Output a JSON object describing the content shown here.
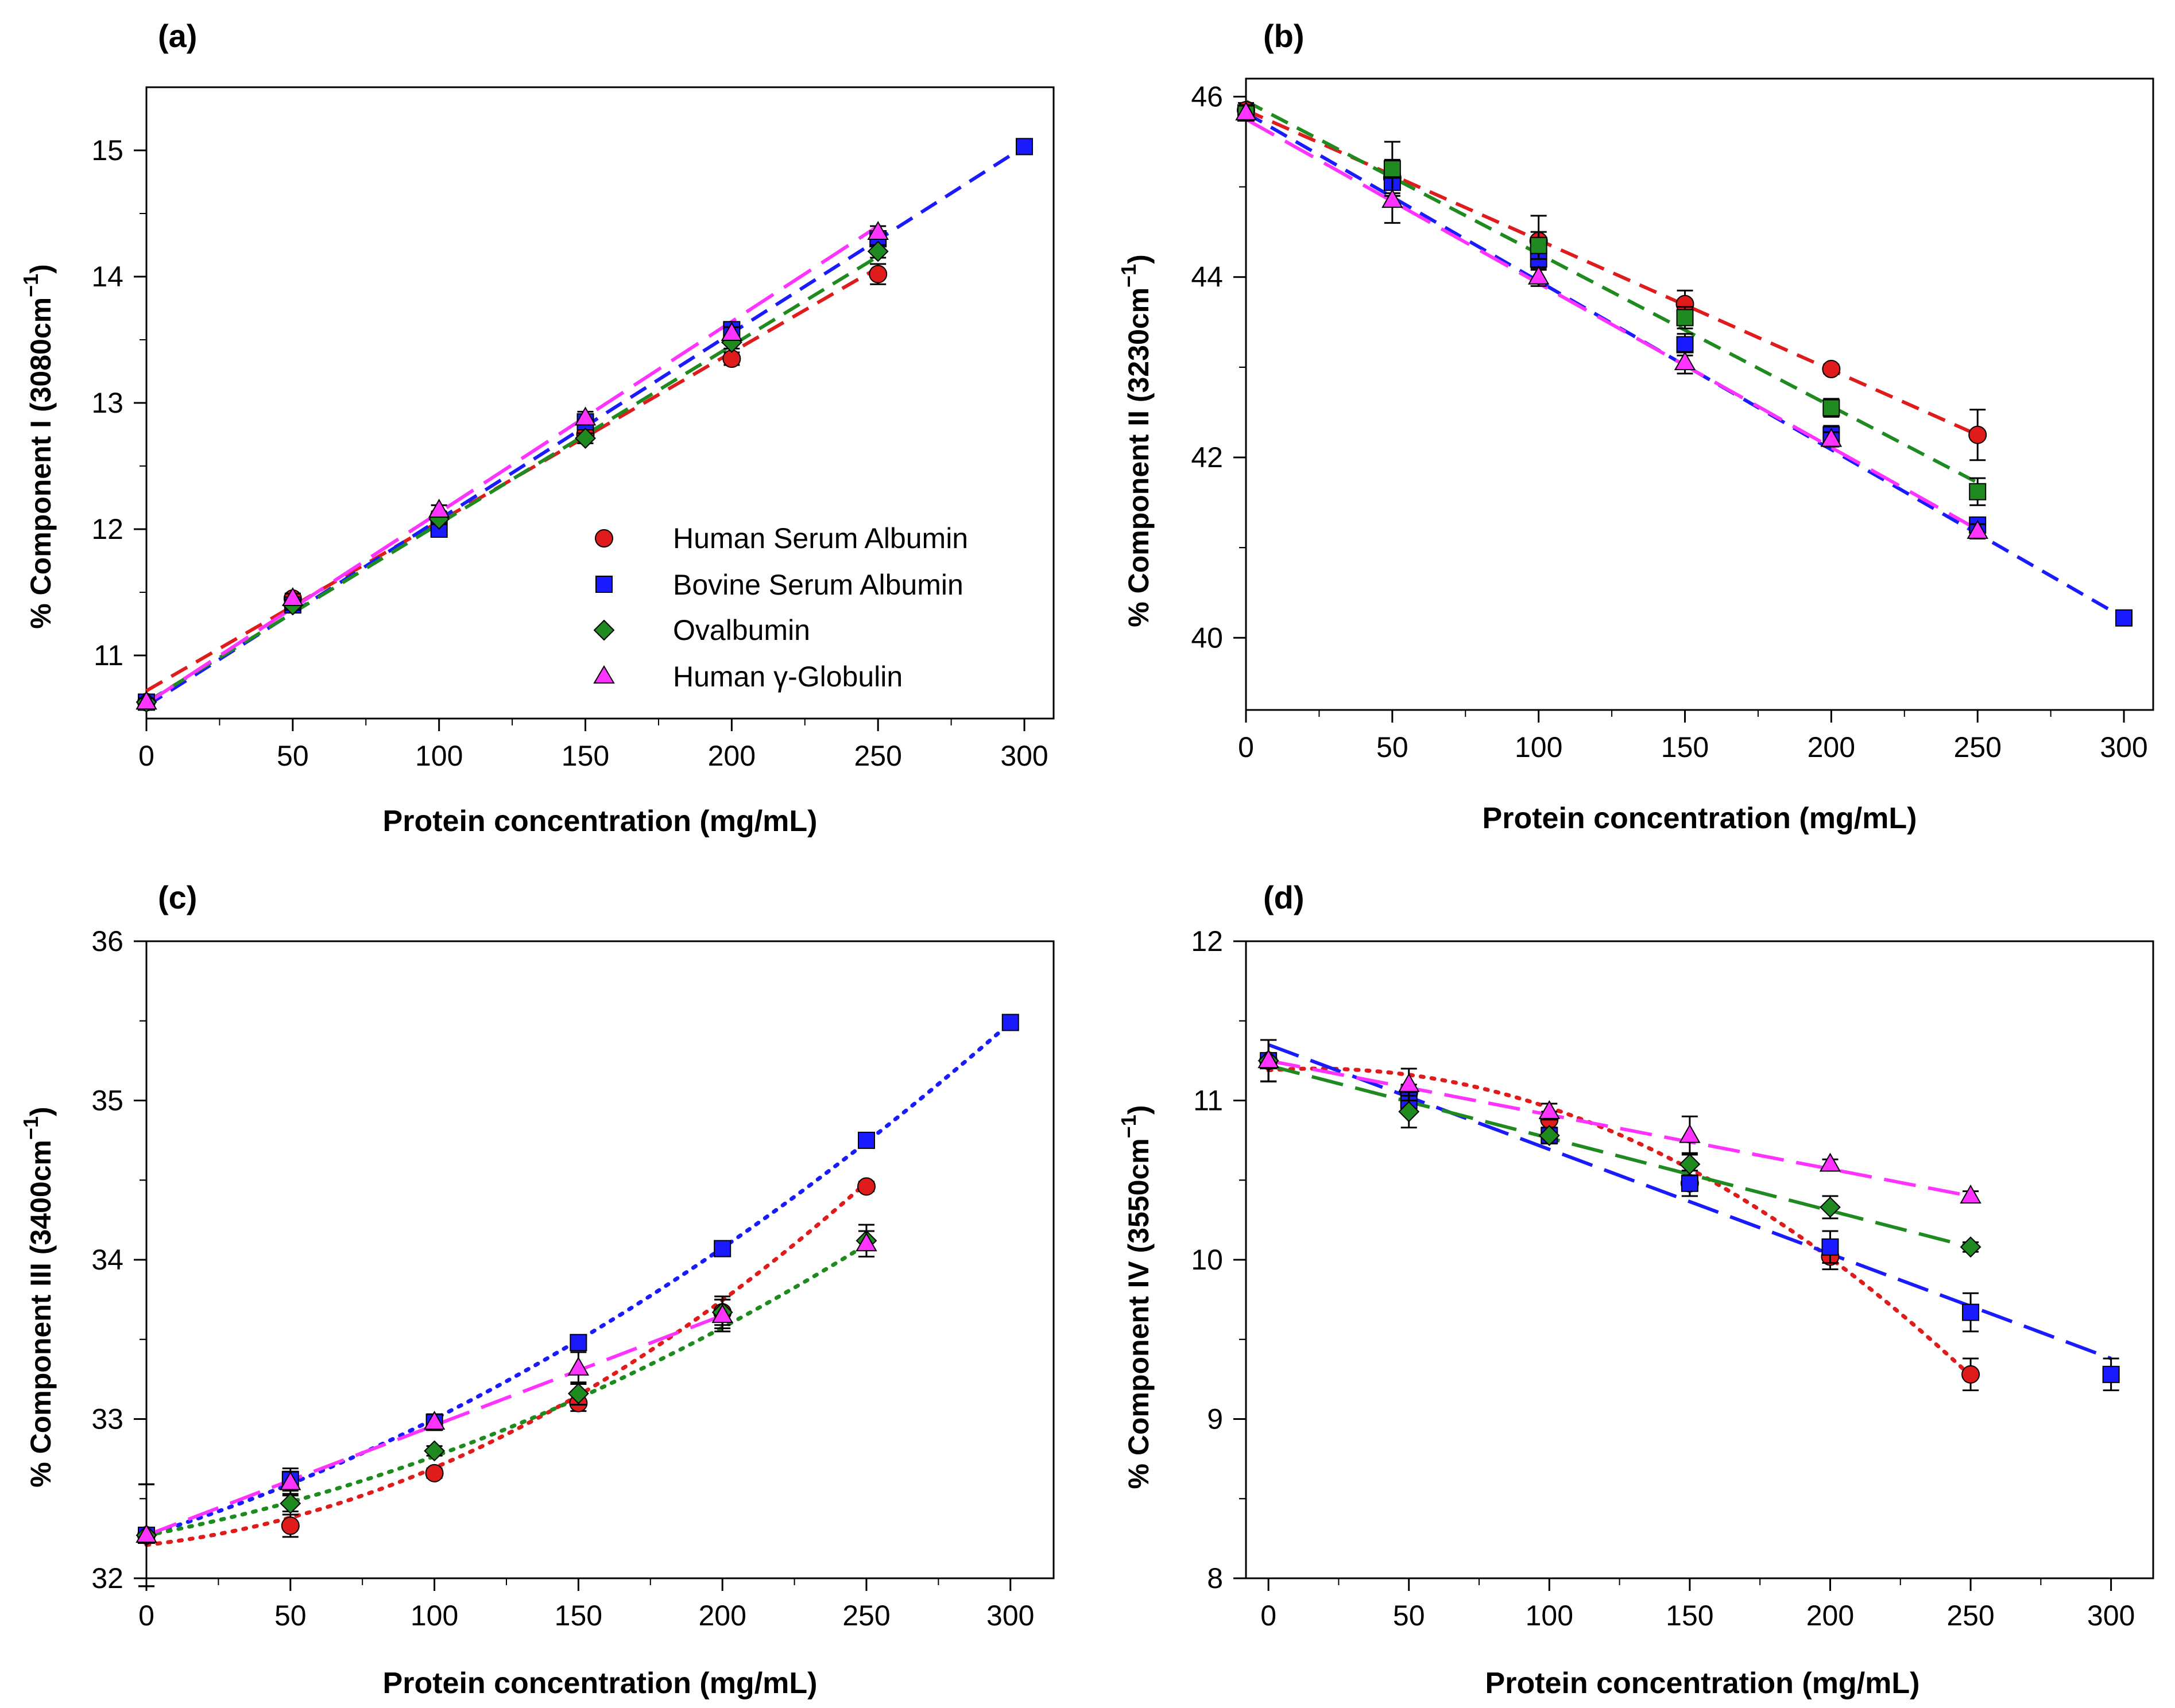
{
  "legend": {
    "hsa": "Human Serum Albumin",
    "bsa": "Bovine Serum Albumin",
    "ova": "Ovalbumin",
    "hgg": "Human γ-Globulin"
  },
  "colors": {
    "hsa": "#e01b1b",
    "bsa": "#1a1aff",
    "ova": "#1f8a1f",
    "hgg": "#ff33ff"
  },
  "chart_data": [
    {
      "type": "scatter",
      "panel": "(a)",
      "xlabel": "Protein concentration (mg/mL)",
      "ylabel_prefix": "% Component I (3080cm",
      "ylabel_sup": "−1",
      "ylabel_suffix": ")",
      "xlim": [
        0,
        310
      ],
      "ylim": [
        10.5,
        15.5
      ],
      "xticks": [
        0,
        50,
        100,
        150,
        200,
        250,
        300
      ],
      "yticks": [
        11,
        12,
        13,
        14,
        15
      ],
      "legend_position": "bottom-right",
      "series": [
        {
          "key": "hsa",
          "marker": "circle",
          "x": [
            0,
            50,
            100,
            150,
            200,
            250
          ],
          "y": [
            10.63,
            11.45,
            12.1,
            12.75,
            13.35,
            14.02
          ],
          "err": [
            0.03,
            0.04,
            0.04,
            0.04,
            0.05,
            0.08
          ],
          "fit": {
            "style": "dash",
            "type": "linear",
            "x": [
              0,
              250
            ],
            "y": [
              10.72,
              14.07
            ]
          }
        },
        {
          "key": "bsa",
          "marker": "square",
          "x": [
            0,
            50,
            100,
            150,
            200,
            250,
            300
          ],
          "y": [
            10.63,
            11.4,
            12.0,
            12.85,
            13.58,
            14.3,
            15.03
          ],
          "err": [
            0.03,
            0.04,
            0.04,
            0.05,
            0.05,
            0.05,
            0.03
          ],
          "fit": {
            "style": "dash",
            "type": "linear",
            "x": [
              0,
              300
            ],
            "y": [
              10.6,
              15.03
            ]
          }
        },
        {
          "key": "ova",
          "marker": "diamond",
          "x": [
            0,
            50,
            100,
            150,
            200,
            250
          ],
          "y": [
            10.63,
            11.4,
            12.08,
            12.72,
            13.48,
            14.2
          ],
          "err": [
            0.03,
            0.04,
            0.04,
            0.04,
            0.05,
            0.05
          ],
          "fit": {
            "style": "dash",
            "type": "linear",
            "x": [
              0,
              250
            ],
            "y": [
              10.63,
              14.16
            ]
          }
        },
        {
          "key": "hgg",
          "marker": "triangle",
          "x": [
            0,
            50,
            100,
            150,
            200,
            250
          ],
          "y": [
            10.63,
            11.45,
            12.15,
            12.88,
            13.55,
            14.35
          ],
          "err": [
            0.03,
            0.04,
            0.04,
            0.05,
            0.05,
            0.05
          ],
          "fit": {
            "style": "longdash",
            "type": "linear",
            "x": [
              0,
              250
            ],
            "y": [
              10.62,
              14.4
            ]
          }
        }
      ]
    },
    {
      "type": "scatter",
      "panel": "(b)",
      "xlabel": "Protein concentration (mg/mL)",
      "ylabel_prefix": "% Component II (3230cm",
      "ylabel_sup": "−1",
      "ylabel_suffix": ")",
      "xlim": [
        0,
        310
      ],
      "ylim": [
        39.2,
        46.2
      ],
      "xticks": [
        0,
        50,
        100,
        150,
        200,
        250,
        300
      ],
      "yticks": [
        40,
        42,
        44,
        46
      ],
      "series": [
        {
          "key": "hsa",
          "marker": "circle",
          "x": [
            0,
            50,
            100,
            150,
            200,
            250
          ],
          "y": [
            45.85,
            45.1,
            44.4,
            43.7,
            42.98,
            42.25
          ],
          "err": [
            0.08,
            0.2,
            0.28,
            0.15,
            0.05,
            0.28
          ],
          "fit": {
            "style": "dash",
            "type": "linear",
            "x": [
              0,
              250
            ],
            "y": [
              45.85,
              42.25
            ]
          }
        },
        {
          "key": "bsa",
          "marker": "square",
          "x": [
            0,
            50,
            100,
            150,
            200,
            250,
            300
          ],
          "y": [
            45.82,
            45.05,
            44.2,
            43.25,
            42.25,
            41.25,
            40.22
          ],
          "err": [
            0.08,
            0.12,
            0.12,
            0.12,
            0.1,
            0.08,
            0.05
          ],
          "fit": {
            "style": "dash",
            "type": "linear",
            "x": [
              0,
              300
            ],
            "y": [
              45.82,
              40.22
            ]
          }
        },
        {
          "key": "ova",
          "marker": "square",
          "x": [
            0,
            50,
            100,
            150,
            200,
            250
          ],
          "y": [
            45.82,
            45.2,
            44.35,
            43.55,
            42.55,
            41.62
          ],
          "err": [
            0.08,
            0.3,
            0.15,
            0.12,
            0.1,
            0.15
          ],
          "fit": {
            "style": "dash",
            "type": "linear",
            "x": [
              0,
              250
            ],
            "y": [
              45.95,
              41.72
            ]
          }
        },
        {
          "key": "hgg",
          "marker": "triangle",
          "x": [
            0,
            50,
            100,
            150,
            200,
            250
          ],
          "y": [
            45.82,
            44.85,
            44.0,
            43.05,
            42.2,
            41.18
          ],
          "err": [
            0.08,
            0.25,
            0.1,
            0.12,
            0.08,
            0.08
          ],
          "fit": {
            "style": "longdash",
            "type": "linear",
            "x": [
              0,
              250
            ],
            "y": [
              45.75,
              41.2
            ]
          }
        }
      ]
    },
    {
      "type": "scatter",
      "panel": "(c)",
      "xlabel": "Protein concentration (mg/mL)",
      "ylabel_prefix": "% Component III (3400cm",
      "ylabel_sup": "−1",
      "ylabel_suffix": ")",
      "xlim": [
        0,
        315
      ],
      "ylim": [
        32,
        36
      ],
      "xticks": [
        0,
        50,
        100,
        150,
        200,
        250,
        300
      ],
      "yticks": [
        32,
        33,
        34,
        35,
        36
      ],
      "series": [
        {
          "key": "hsa",
          "marker": "circle",
          "x": [
            0,
            50,
            100,
            150,
            200,
            250
          ],
          "y": [
            32.27,
            32.33,
            32.66,
            33.1,
            33.67,
            34.46
          ],
          "err": [
            0.32,
            0.07,
            0.03,
            0.05,
            0.1,
            0.03
          ],
          "fit": {
            "style": "dot",
            "type": "quadratic",
            "coef": [
              32.21,
              0.002,
              2.84e-05
            ],
            "range": [
              0,
              250
            ]
          }
        },
        {
          "key": "bsa",
          "marker": "square",
          "x": [
            0,
            50,
            100,
            150,
            200,
            250,
            300
          ],
          "y": [
            32.27,
            32.62,
            32.98,
            33.48,
            34.07,
            34.75,
            35.49
          ],
          "err": [
            0.32,
            0.07,
            0.03,
            0.03,
            0.03,
            0.03,
            0.03
          ],
          "fit": {
            "style": "dot",
            "type": "quadratic",
            "coef": [
              32.27,
              0.0056,
              1.71e-05
            ],
            "range": [
              0,
              300
            ]
          }
        },
        {
          "key": "ova",
          "marker": "diamond",
          "x": [
            0,
            50,
            100,
            150,
            200,
            250
          ],
          "y": [
            32.27,
            32.47,
            32.8,
            33.16,
            33.67,
            34.12
          ],
          "err": [
            0.32,
            0.05,
            0.03,
            0.07,
            0.08,
            0.1
          ],
          "fit": {
            "style": "dot",
            "type": "quadratic",
            "coef": [
              32.27,
              0.0034,
              1.56e-05
            ],
            "range": [
              0,
              250
            ]
          }
        },
        {
          "key": "hgg",
          "marker": "triangle",
          "x": [
            0,
            50,
            100,
            150,
            200,
            250
          ],
          "y": [
            32.27,
            32.6,
            32.98,
            33.32,
            33.65,
            34.1
          ],
          "err": [
            0.32,
            0.07,
            0.05,
            0.1,
            0.1,
            0.08
          ],
          "fit": {
            "style": "longdash",
            "type": "linear",
            "x": [
              0,
              200
            ],
            "y": [
              32.27,
              33.65
            ]
          }
        }
      ]
    },
    {
      "type": "scatter",
      "panel": "(d)",
      "xlabel": "Protein concentration (mg/mL)",
      "ylabel_prefix": "% Component IV (3550cm",
      "ylabel_sup": "−1",
      "ylabel_suffix": ")",
      "xlim": [
        -8,
        315
      ],
      "ylim": [
        8,
        12
      ],
      "xticks": [
        0,
        50,
        100,
        150,
        200,
        250,
        300
      ],
      "yticks": [
        8,
        9,
        10,
        11,
        12
      ],
      "series": [
        {
          "key": "hsa",
          "marker": "circle",
          "x": [
            0,
            50,
            100,
            150,
            200,
            250
          ],
          "y": [
            11.25,
            11.05,
            10.88,
            10.48,
            10.02,
            9.28
          ],
          "err": [
            0.13,
            0.05,
            0.05,
            0.08,
            0.08,
            0.1
          ],
          "fit": {
            "style": "dot",
            "type": "quadratic",
            "coef": [
              11.19,
              0.0012,
              -3.55e-05
            ],
            "range": [
              0,
              250
            ]
          }
        },
        {
          "key": "bsa",
          "marker": "square",
          "x": [
            0,
            50,
            100,
            150,
            200,
            250,
            300
          ],
          "y": [
            11.25,
            11.0,
            10.78,
            10.48,
            10.08,
            9.67,
            9.28
          ],
          "err": [
            0.13,
            0.05,
            0.05,
            0.08,
            0.1,
            0.12,
            0.1
          ],
          "fit": {
            "style": "longdash",
            "type": "linear",
            "x": [
              0,
              300
            ],
            "y": [
              11.35,
              9.38
            ]
          }
        },
        {
          "key": "ova",
          "marker": "diamond",
          "x": [
            0,
            50,
            100,
            150,
            200,
            250
          ],
          "y": [
            11.25,
            10.93,
            10.78,
            10.6,
            10.33,
            10.08
          ],
          "err": [
            0.13,
            0.1,
            0.05,
            0.07,
            0.07,
            0.03
          ],
          "fit": {
            "style": "longdash",
            "type": "linear",
            "x": [
              0,
              250
            ],
            "y": [
              11.22,
              10.08
            ]
          }
        },
        {
          "key": "hgg",
          "marker": "triangle",
          "x": [
            0,
            50,
            100,
            150,
            200,
            250
          ],
          "y": [
            11.25,
            11.1,
            10.93,
            10.78,
            10.6,
            10.4
          ],
          "err": [
            0.13,
            0.1,
            0.05,
            0.12,
            0.03,
            0.03
          ],
          "fit": {
            "style": "longdash",
            "type": "linear",
            "x": [
              0,
              250
            ],
            "y": [
              11.25,
              10.4
            ]
          }
        }
      ]
    }
  ]
}
